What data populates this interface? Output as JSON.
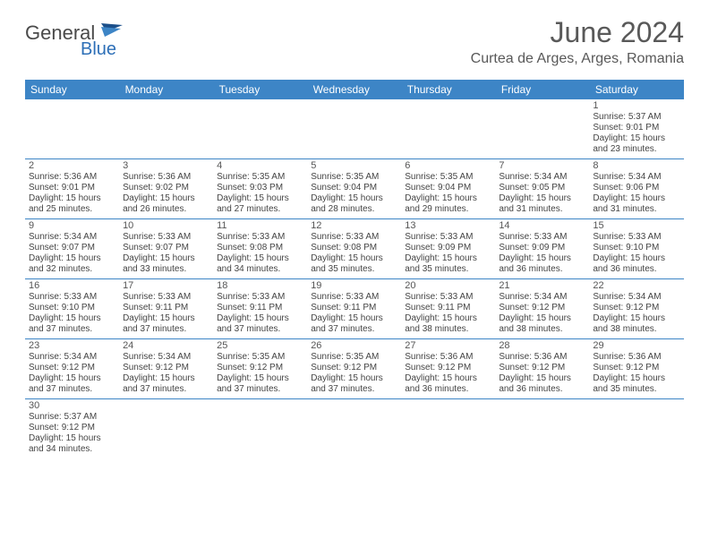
{
  "brand": {
    "part1": "General",
    "part2": "Blue"
  },
  "title": "June 2024",
  "location": "Curtea de Arges, Arges, Romania",
  "weekdays": [
    "Sunday",
    "Monday",
    "Tuesday",
    "Wednesday",
    "Thursday",
    "Friday",
    "Saturday"
  ],
  "colors": {
    "header_bg": "#3d85c6",
    "header_text": "#ffffff",
    "text": "#444444",
    "title_text": "#595959",
    "rule": "#3d85c6",
    "logo_gray": "#4a4a4a",
    "logo_blue": "#2d6fb7"
  },
  "grid": [
    [
      null,
      null,
      null,
      null,
      null,
      null,
      {
        "day": "1",
        "sunrise": "5:37 AM",
        "sunset": "9:01 PM",
        "daylight": "15 hours and 23 minutes."
      }
    ],
    [
      {
        "day": "2",
        "sunrise": "5:36 AM",
        "sunset": "9:01 PM",
        "daylight": "15 hours and 25 minutes."
      },
      {
        "day": "3",
        "sunrise": "5:36 AM",
        "sunset": "9:02 PM",
        "daylight": "15 hours and 26 minutes."
      },
      {
        "day": "4",
        "sunrise": "5:35 AM",
        "sunset": "9:03 PM",
        "daylight": "15 hours and 27 minutes."
      },
      {
        "day": "5",
        "sunrise": "5:35 AM",
        "sunset": "9:04 PM",
        "daylight": "15 hours and 28 minutes."
      },
      {
        "day": "6",
        "sunrise": "5:35 AM",
        "sunset": "9:04 PM",
        "daylight": "15 hours and 29 minutes."
      },
      {
        "day": "7",
        "sunrise": "5:34 AM",
        "sunset": "9:05 PM",
        "daylight": "15 hours and 31 minutes."
      },
      {
        "day": "8",
        "sunrise": "5:34 AM",
        "sunset": "9:06 PM",
        "daylight": "15 hours and 31 minutes."
      }
    ],
    [
      {
        "day": "9",
        "sunrise": "5:34 AM",
        "sunset": "9:07 PM",
        "daylight": "15 hours and 32 minutes."
      },
      {
        "day": "10",
        "sunrise": "5:33 AM",
        "sunset": "9:07 PM",
        "daylight": "15 hours and 33 minutes."
      },
      {
        "day": "11",
        "sunrise": "5:33 AM",
        "sunset": "9:08 PM",
        "daylight": "15 hours and 34 minutes."
      },
      {
        "day": "12",
        "sunrise": "5:33 AM",
        "sunset": "9:08 PM",
        "daylight": "15 hours and 35 minutes."
      },
      {
        "day": "13",
        "sunrise": "5:33 AM",
        "sunset": "9:09 PM",
        "daylight": "15 hours and 35 minutes."
      },
      {
        "day": "14",
        "sunrise": "5:33 AM",
        "sunset": "9:09 PM",
        "daylight": "15 hours and 36 minutes."
      },
      {
        "day": "15",
        "sunrise": "5:33 AM",
        "sunset": "9:10 PM",
        "daylight": "15 hours and 36 minutes."
      }
    ],
    [
      {
        "day": "16",
        "sunrise": "5:33 AM",
        "sunset": "9:10 PM",
        "daylight": "15 hours and 37 minutes."
      },
      {
        "day": "17",
        "sunrise": "5:33 AM",
        "sunset": "9:11 PM",
        "daylight": "15 hours and 37 minutes."
      },
      {
        "day": "18",
        "sunrise": "5:33 AM",
        "sunset": "9:11 PM",
        "daylight": "15 hours and 37 minutes."
      },
      {
        "day": "19",
        "sunrise": "5:33 AM",
        "sunset": "9:11 PM",
        "daylight": "15 hours and 37 minutes."
      },
      {
        "day": "20",
        "sunrise": "5:33 AM",
        "sunset": "9:11 PM",
        "daylight": "15 hours and 38 minutes."
      },
      {
        "day": "21",
        "sunrise": "5:34 AM",
        "sunset": "9:12 PM",
        "daylight": "15 hours and 38 minutes."
      },
      {
        "day": "22",
        "sunrise": "5:34 AM",
        "sunset": "9:12 PM",
        "daylight": "15 hours and 38 minutes."
      }
    ],
    [
      {
        "day": "23",
        "sunrise": "5:34 AM",
        "sunset": "9:12 PM",
        "daylight": "15 hours and 37 minutes."
      },
      {
        "day": "24",
        "sunrise": "5:34 AM",
        "sunset": "9:12 PM",
        "daylight": "15 hours and 37 minutes."
      },
      {
        "day": "25",
        "sunrise": "5:35 AM",
        "sunset": "9:12 PM",
        "daylight": "15 hours and 37 minutes."
      },
      {
        "day": "26",
        "sunrise": "5:35 AM",
        "sunset": "9:12 PM",
        "daylight": "15 hours and 37 minutes."
      },
      {
        "day": "27",
        "sunrise": "5:36 AM",
        "sunset": "9:12 PM",
        "daylight": "15 hours and 36 minutes."
      },
      {
        "day": "28",
        "sunrise": "5:36 AM",
        "sunset": "9:12 PM",
        "daylight": "15 hours and 36 minutes."
      },
      {
        "day": "29",
        "sunrise": "5:36 AM",
        "sunset": "9:12 PM",
        "daylight": "15 hours and 35 minutes."
      }
    ],
    [
      {
        "day": "30",
        "sunrise": "5:37 AM",
        "sunset": "9:12 PM",
        "daylight": "15 hours and 34 minutes."
      },
      null,
      null,
      null,
      null,
      null,
      null
    ]
  ]
}
